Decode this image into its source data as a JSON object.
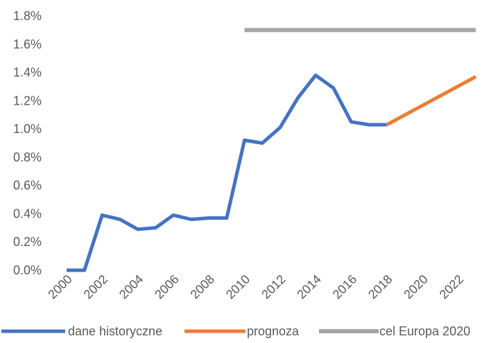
{
  "chart_data": {
    "type": "line",
    "title": "",
    "xlabel": "",
    "ylabel": "",
    "xlim": [
      2000,
      2023
    ],
    "ylim": [
      0,
      1.8
    ],
    "x_ticks": [
      "2000",
      "2002",
      "2004",
      "2006",
      "2008",
      "2010",
      "2012",
      "2014",
      "2016",
      "2018",
      "2020",
      "2022"
    ],
    "y_ticks": [
      "0.0%",
      "0.2%",
      "0.4%",
      "0.6%",
      "0.8%",
      "1.0%",
      "1.2%",
      "1.4%",
      "1.6%",
      "1.8%"
    ],
    "grid": false,
    "legend_position": "bottom",
    "series": [
      {
        "name": "dane historyczne",
        "color": "#4472C4",
        "points": [
          [
            2000,
            0.0
          ],
          [
            2001,
            0.0
          ],
          [
            2002,
            0.39
          ],
          [
            2003,
            0.36
          ],
          [
            2004,
            0.29
          ],
          [
            2005,
            0.3
          ],
          [
            2006,
            0.39
          ],
          [
            2007,
            0.36
          ],
          [
            2008,
            0.37
          ],
          [
            2009,
            0.37
          ],
          [
            2010,
            0.92
          ],
          [
            2011,
            0.9
          ],
          [
            2012,
            1.01
          ],
          [
            2013,
            1.22
          ],
          [
            2014,
            1.38
          ],
          [
            2015,
            1.29
          ],
          [
            2016,
            1.05
          ],
          [
            2017,
            1.03
          ],
          [
            2018,
            1.03
          ]
        ]
      },
      {
        "name": "prognoza",
        "color": "#ED7D31",
        "points": [
          [
            2018,
            1.03
          ],
          [
            2023,
            1.37
          ]
        ]
      },
      {
        "name": "cel Europa 2020",
        "color": "#A5A5A5",
        "points": [
          [
            2010,
            1.7
          ],
          [
            2023,
            1.7
          ]
        ]
      }
    ]
  }
}
